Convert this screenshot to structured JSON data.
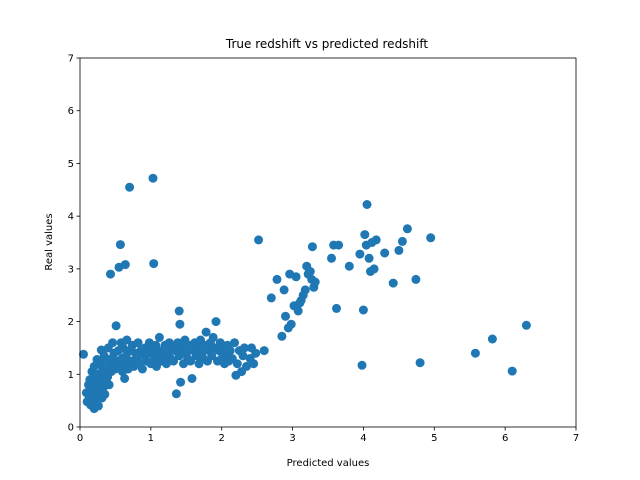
{
  "chart_data": {
    "type": "scatter",
    "title": "True redshift vs predicted redshift",
    "xlabel": "Predicted values",
    "ylabel": "Real values",
    "xlim": [
      0,
      7
    ],
    "ylim": [
      0,
      7
    ],
    "xticks": [
      "0",
      "1",
      "2",
      "3",
      "4",
      "5",
      "6",
      "7"
    ],
    "yticks": [
      "0",
      "1",
      "2",
      "3",
      "4",
      "5",
      "6",
      "7"
    ],
    "grid": false,
    "series": [
      {
        "color": "#1f77b4",
        "marker": "circle",
        "points": [
          [
            0.05,
            1.38
          ],
          [
            0.09,
            0.65
          ],
          [
            0.1,
            0.48
          ],
          [
            0.12,
            0.8
          ],
          [
            0.13,
            0.55
          ],
          [
            0.14,
            0.9
          ],
          [
            0.15,
            0.42
          ],
          [
            0.16,
            0.72
          ],
          [
            0.17,
            1.05
          ],
          [
            0.18,
            0.6
          ],
          [
            0.19,
            0.85
          ],
          [
            0.2,
            0.35
          ],
          [
            0.2,
            1.15
          ],
          [
            0.21,
            0.5
          ],
          [
            0.22,
            0.95
          ],
          [
            0.23,
            0.7
          ],
          [
            0.24,
            1.28
          ],
          [
            0.25,
            0.58
          ],
          [
            0.26,
            0.4
          ],
          [
            0.26,
            1.0
          ],
          [
            0.27,
            0.8
          ],
          [
            0.28,
            0.65
          ],
          [
            0.29,
            1.2
          ],
          [
            0.3,
            0.9
          ],
          [
            0.3,
            1.46
          ],
          [
            0.31,
            0.55
          ],
          [
            0.32,
            1.1
          ],
          [
            0.33,
            0.75
          ],
          [
            0.34,
            1.35
          ],
          [
            0.35,
            0.62
          ],
          [
            0.36,
            1.0
          ],
          [
            0.37,
            0.85
          ],
          [
            0.38,
            1.25
          ],
          [
            0.39,
            0.95
          ],
          [
            0.4,
            1.5
          ],
          [
            0.41,
            0.8
          ],
          [
            0.42,
            1.15
          ],
          [
            0.43,
            2.9
          ],
          [
            0.44,
            1.05
          ],
          [
            0.45,
            1.3
          ],
          [
            0.46,
            1.6
          ],
          [
            0.47,
            1.2
          ],
          [
            0.48,
            1.4
          ],
          [
            0.5,
            1.1
          ],
          [
            0.51,
            1.92
          ],
          [
            0.52,
            1.25
          ],
          [
            0.54,
            1.45
          ],
          [
            0.55,
            3.03
          ],
          [
            0.56,
            1.15
          ],
          [
            0.57,
            3.46
          ],
          [
            0.58,
            1.6
          ],
          [
            0.59,
            1.3
          ],
          [
            0.6,
            1.05
          ],
          [
            0.61,
            1.5
          ],
          [
            0.62,
            1.2
          ],
          [
            0.63,
            0.92
          ],
          [
            0.64,
            3.08
          ],
          [
            0.65,
            1.35
          ],
          [
            0.66,
            1.65
          ],
          [
            0.68,
            1.1
          ],
          [
            0.7,
            4.55
          ],
          [
            0.7,
            1.45
          ],
          [
            0.72,
            1.25
          ],
          [
            0.74,
            1.55
          ],
          [
            0.76,
            1.15
          ],
          [
            0.78,
            1.4
          ],
          [
            0.8,
            1.3
          ],
          [
            0.82,
            1.6
          ],
          [
            0.84,
            1.2
          ],
          [
            0.86,
            1.45
          ],
          [
            0.88,
            1.1
          ],
          [
            0.9,
            1.35
          ],
          [
            0.92,
            1.5
          ],
          [
            0.94,
            1.25
          ],
          [
            0.96,
            1.4
          ],
          [
            0.98,
            1.6
          ],
          [
            1.0,
            1.2
          ],
          [
            1.02,
            1.45
          ],
          [
            1.03,
            4.72
          ],
          [
            1.04,
            3.1
          ],
          [
            1.05,
            1.3
          ],
          [
            1.07,
            1.55
          ],
          [
            1.08,
            1.15
          ],
          [
            1.1,
            1.4
          ],
          [
            1.12,
            1.7
          ],
          [
            1.14,
            1.25
          ],
          [
            1.16,
            1.45
          ],
          [
            1.18,
            1.35
          ],
          [
            1.2,
            1.55
          ],
          [
            1.22,
            1.2
          ],
          [
            1.24,
            1.4
          ],
          [
            1.26,
            1.6
          ],
          [
            1.28,
            1.3
          ],
          [
            1.3,
            1.5
          ],
          [
            1.32,
            1.25
          ],
          [
            1.34,
            1.45
          ],
          [
            1.36,
            0.63
          ],
          [
            1.38,
            1.6
          ],
          [
            1.4,
            2.2
          ],
          [
            1.4,
            1.35
          ],
          [
            1.41,
            1.95
          ],
          [
            1.42,
            0.85
          ],
          [
            1.44,
            1.5
          ],
          [
            1.46,
            1.2
          ],
          [
            1.48,
            1.65
          ],
          [
            1.5,
            1.4
          ],
          [
            1.52,
            1.3
          ],
          [
            1.54,
            1.55
          ],
          [
            1.56,
            1.25
          ],
          [
            1.58,
            0.92
          ],
          [
            1.6,
            1.45
          ],
          [
            1.62,
            1.6
          ],
          [
            1.64,
            1.35
          ],
          [
            1.66,
            1.5
          ],
          [
            1.68,
            1.2
          ],
          [
            1.7,
            1.65
          ],
          [
            1.72,
            1.4
          ],
          [
            1.74,
            1.3
          ],
          [
            1.76,
            1.55
          ],
          [
            1.78,
            1.8
          ],
          [
            1.8,
            1.25
          ],
          [
            1.82,
            1.45
          ],
          [
            1.84,
            1.6
          ],
          [
            1.86,
            1.35
          ],
          [
            1.88,
            1.7
          ],
          [
            1.9,
            1.5
          ],
          [
            1.92,
            2.0
          ],
          [
            1.94,
            1.25
          ],
          [
            1.96,
            1.45
          ],
          [
            1.98,
            1.6
          ],
          [
            2.0,
            1.3
          ],
          [
            2.02,
            1.5
          ],
          [
            2.04,
            1.2
          ],
          [
            2.06,
            1.4
          ],
          [
            2.08,
            1.55
          ],
          [
            2.1,
            1.25
          ],
          [
            2.12,
            1.45
          ],
          [
            2.15,
            1.3
          ],
          [
            2.18,
            1.6
          ],
          [
            2.2,
            0.98
          ],
          [
            2.22,
            1.2
          ],
          [
            2.25,
            1.45
          ],
          [
            2.28,
            1.05
          ],
          [
            2.3,
            1.35
          ],
          [
            2.32,
            1.5
          ],
          [
            2.35,
            1.15
          ],
          [
            2.4,
            1.3
          ],
          [
            2.42,
            1.5
          ],
          [
            2.45,
            1.2
          ],
          [
            2.48,
            1.4
          ],
          [
            2.52,
            3.55
          ],
          [
            2.6,
            1.45
          ],
          [
            2.7,
            2.45
          ],
          [
            2.78,
            2.8
          ],
          [
            2.85,
            1.72
          ],
          [
            2.88,
            2.6
          ],
          [
            2.9,
            2.1
          ],
          [
            2.94,
            1.88
          ],
          [
            2.96,
            2.9
          ],
          [
            2.98,
            1.95
          ],
          [
            3.02,
            2.3
          ],
          [
            3.05,
            2.85
          ],
          [
            3.08,
            2.2
          ],
          [
            3.1,
            2.35
          ],
          [
            3.12,
            2.4
          ],
          [
            3.15,
            2.5
          ],
          [
            3.18,
            2.6
          ],
          [
            3.2,
            3.05
          ],
          [
            3.22,
            2.9
          ],
          [
            3.25,
            2.95
          ],
          [
            3.27,
            2.8
          ],
          [
            3.28,
            3.42
          ],
          [
            3.3,
            2.65
          ],
          [
            3.32,
            2.75
          ],
          [
            3.55,
            3.2
          ],
          [
            3.58,
            3.45
          ],
          [
            3.62,
            2.25
          ],
          [
            3.65,
            3.45
          ],
          [
            3.8,
            3.05
          ],
          [
            3.95,
            3.28
          ],
          [
            3.98,
            1.17
          ],
          [
            4.0,
            2.22
          ],
          [
            4.02,
            3.65
          ],
          [
            4.04,
            3.45
          ],
          [
            4.05,
            4.22
          ],
          [
            4.08,
            3.2
          ],
          [
            4.1,
            2.95
          ],
          [
            4.12,
            3.5
          ],
          [
            4.15,
            3.0
          ],
          [
            4.18,
            3.55
          ],
          [
            4.3,
            3.3
          ],
          [
            4.42,
            2.73
          ],
          [
            4.5,
            3.35
          ],
          [
            4.55,
            3.52
          ],
          [
            4.62,
            3.76
          ],
          [
            4.74,
            2.8
          ],
          [
            4.8,
            1.22
          ],
          [
            4.95,
            3.59
          ],
          [
            5.58,
            1.4
          ],
          [
            5.82,
            1.67
          ],
          [
            6.1,
            1.06
          ],
          [
            6.3,
            1.93
          ]
        ]
      }
    ]
  }
}
